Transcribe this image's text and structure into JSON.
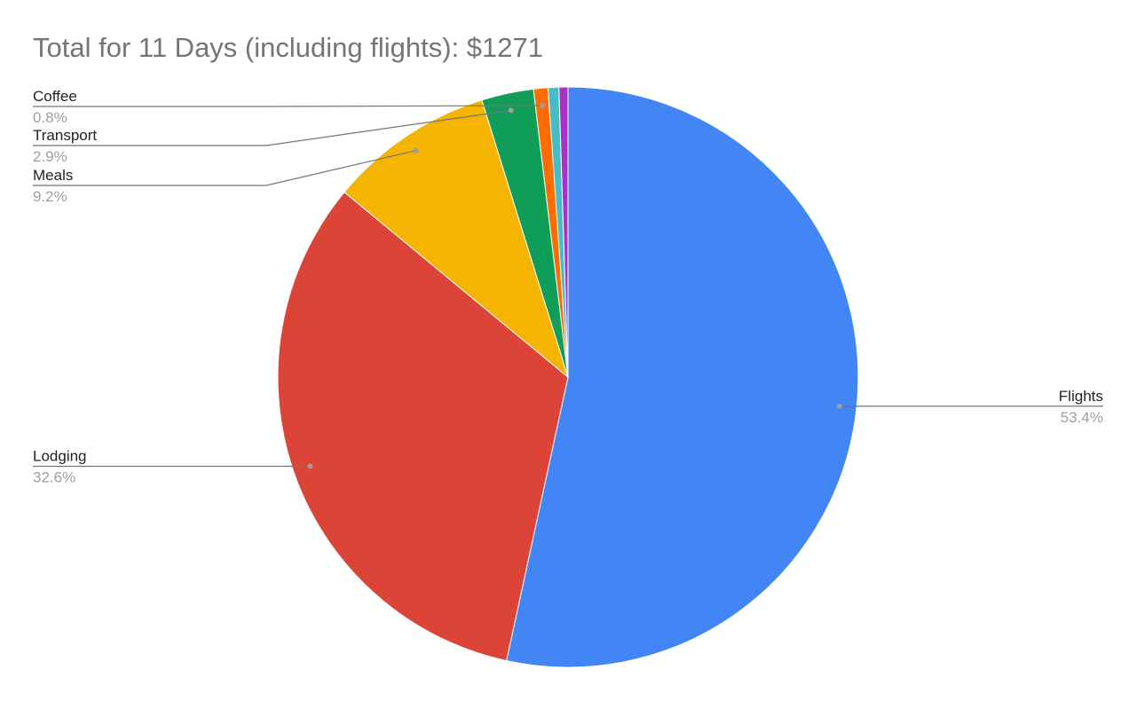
{
  "chart_data": {
    "type": "pie",
    "title": "Total for 11 Days (including flights): $1271",
    "categories": [
      "Flights",
      "Lodging",
      "Meals",
      "Transport",
      "Coffee",
      null,
      null
    ],
    "values": [
      53.4,
      32.6,
      9.2,
      2.9,
      0.8,
      0.6,
      0.5
    ],
    "value_labels": [
      "53.4%",
      "32.6%",
      "9.2%",
      "2.9%",
      "0.8%",
      null,
      null
    ],
    "colors": [
      "#4285f4",
      "#db4437",
      "#f4b400",
      "#0f9d58",
      "#ff6d01",
      "#46bdc6",
      "#ab30c4"
    ]
  }
}
